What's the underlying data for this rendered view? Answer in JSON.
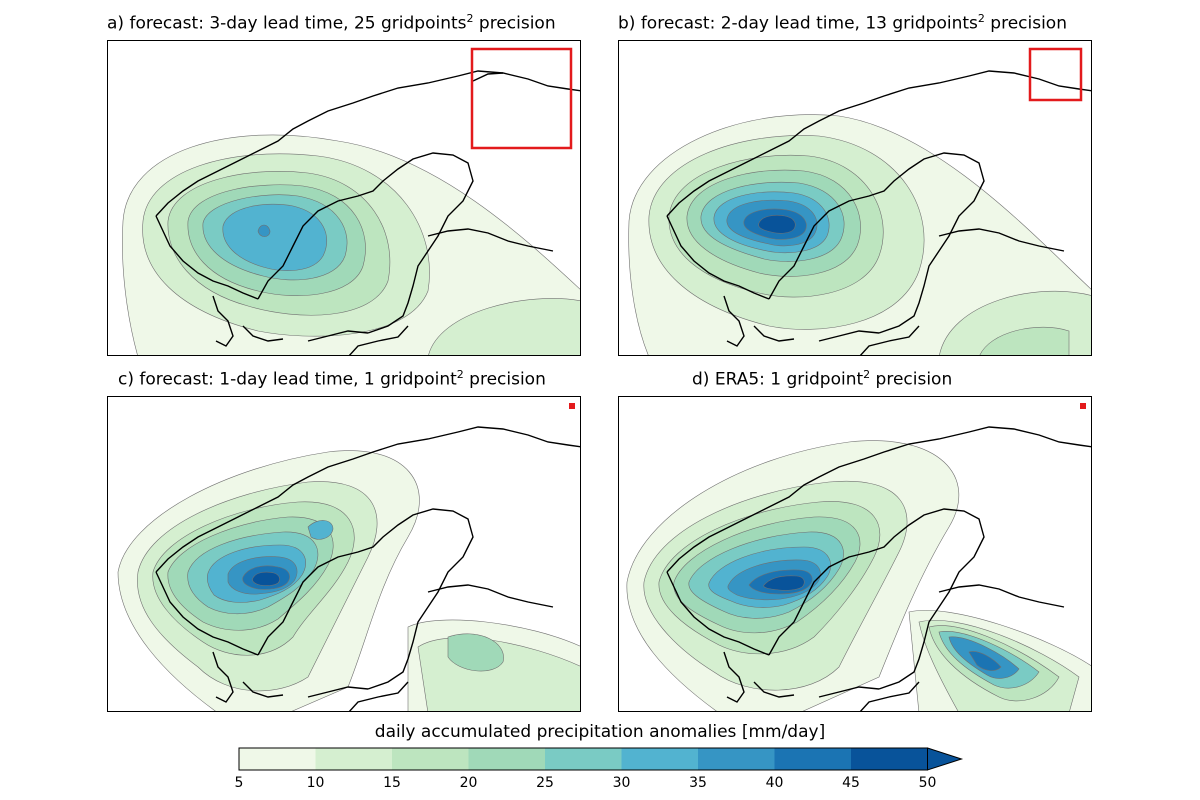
{
  "panels": [
    {
      "id": "a",
      "title_main": "a) forecast: 3-day lead time, 25 gridpoints",
      "title_end": " precision",
      "sup": "2"
    },
    {
      "id": "b",
      "title_main": "b) forecast: 2-day lead time, 13 gridpoints",
      "title_end": " precision",
      "sup": "2"
    },
    {
      "id": "c",
      "title_main": "c) forecast: 1-day lead time, 1 gridpoint",
      "title_end": " precision",
      "sup": "2"
    },
    {
      "id": "d",
      "title_main": "d) ERA5: 1 gridpoint",
      "title_end": " precision",
      "sup": "2"
    }
  ],
  "colorbar": {
    "label": "daily accumulated precipitation anomalies [mm/day]",
    "ticks": [
      "5",
      "10",
      "15",
      "20",
      "25",
      "30",
      "35",
      "40",
      "45",
      "50"
    ],
    "colors": [
      "#eff8e8",
      "#d5efd0",
      "#bde5bf",
      "#a0d9b8",
      "#7acbc4",
      "#52b3d0",
      "#3695c4",
      "#1b74b3",
      "#08539a"
    ],
    "extend": "max"
  },
  "colors": {
    "box": "#e31a1c",
    "coast": "#000000",
    "contour_line": "#707070"
  }
}
